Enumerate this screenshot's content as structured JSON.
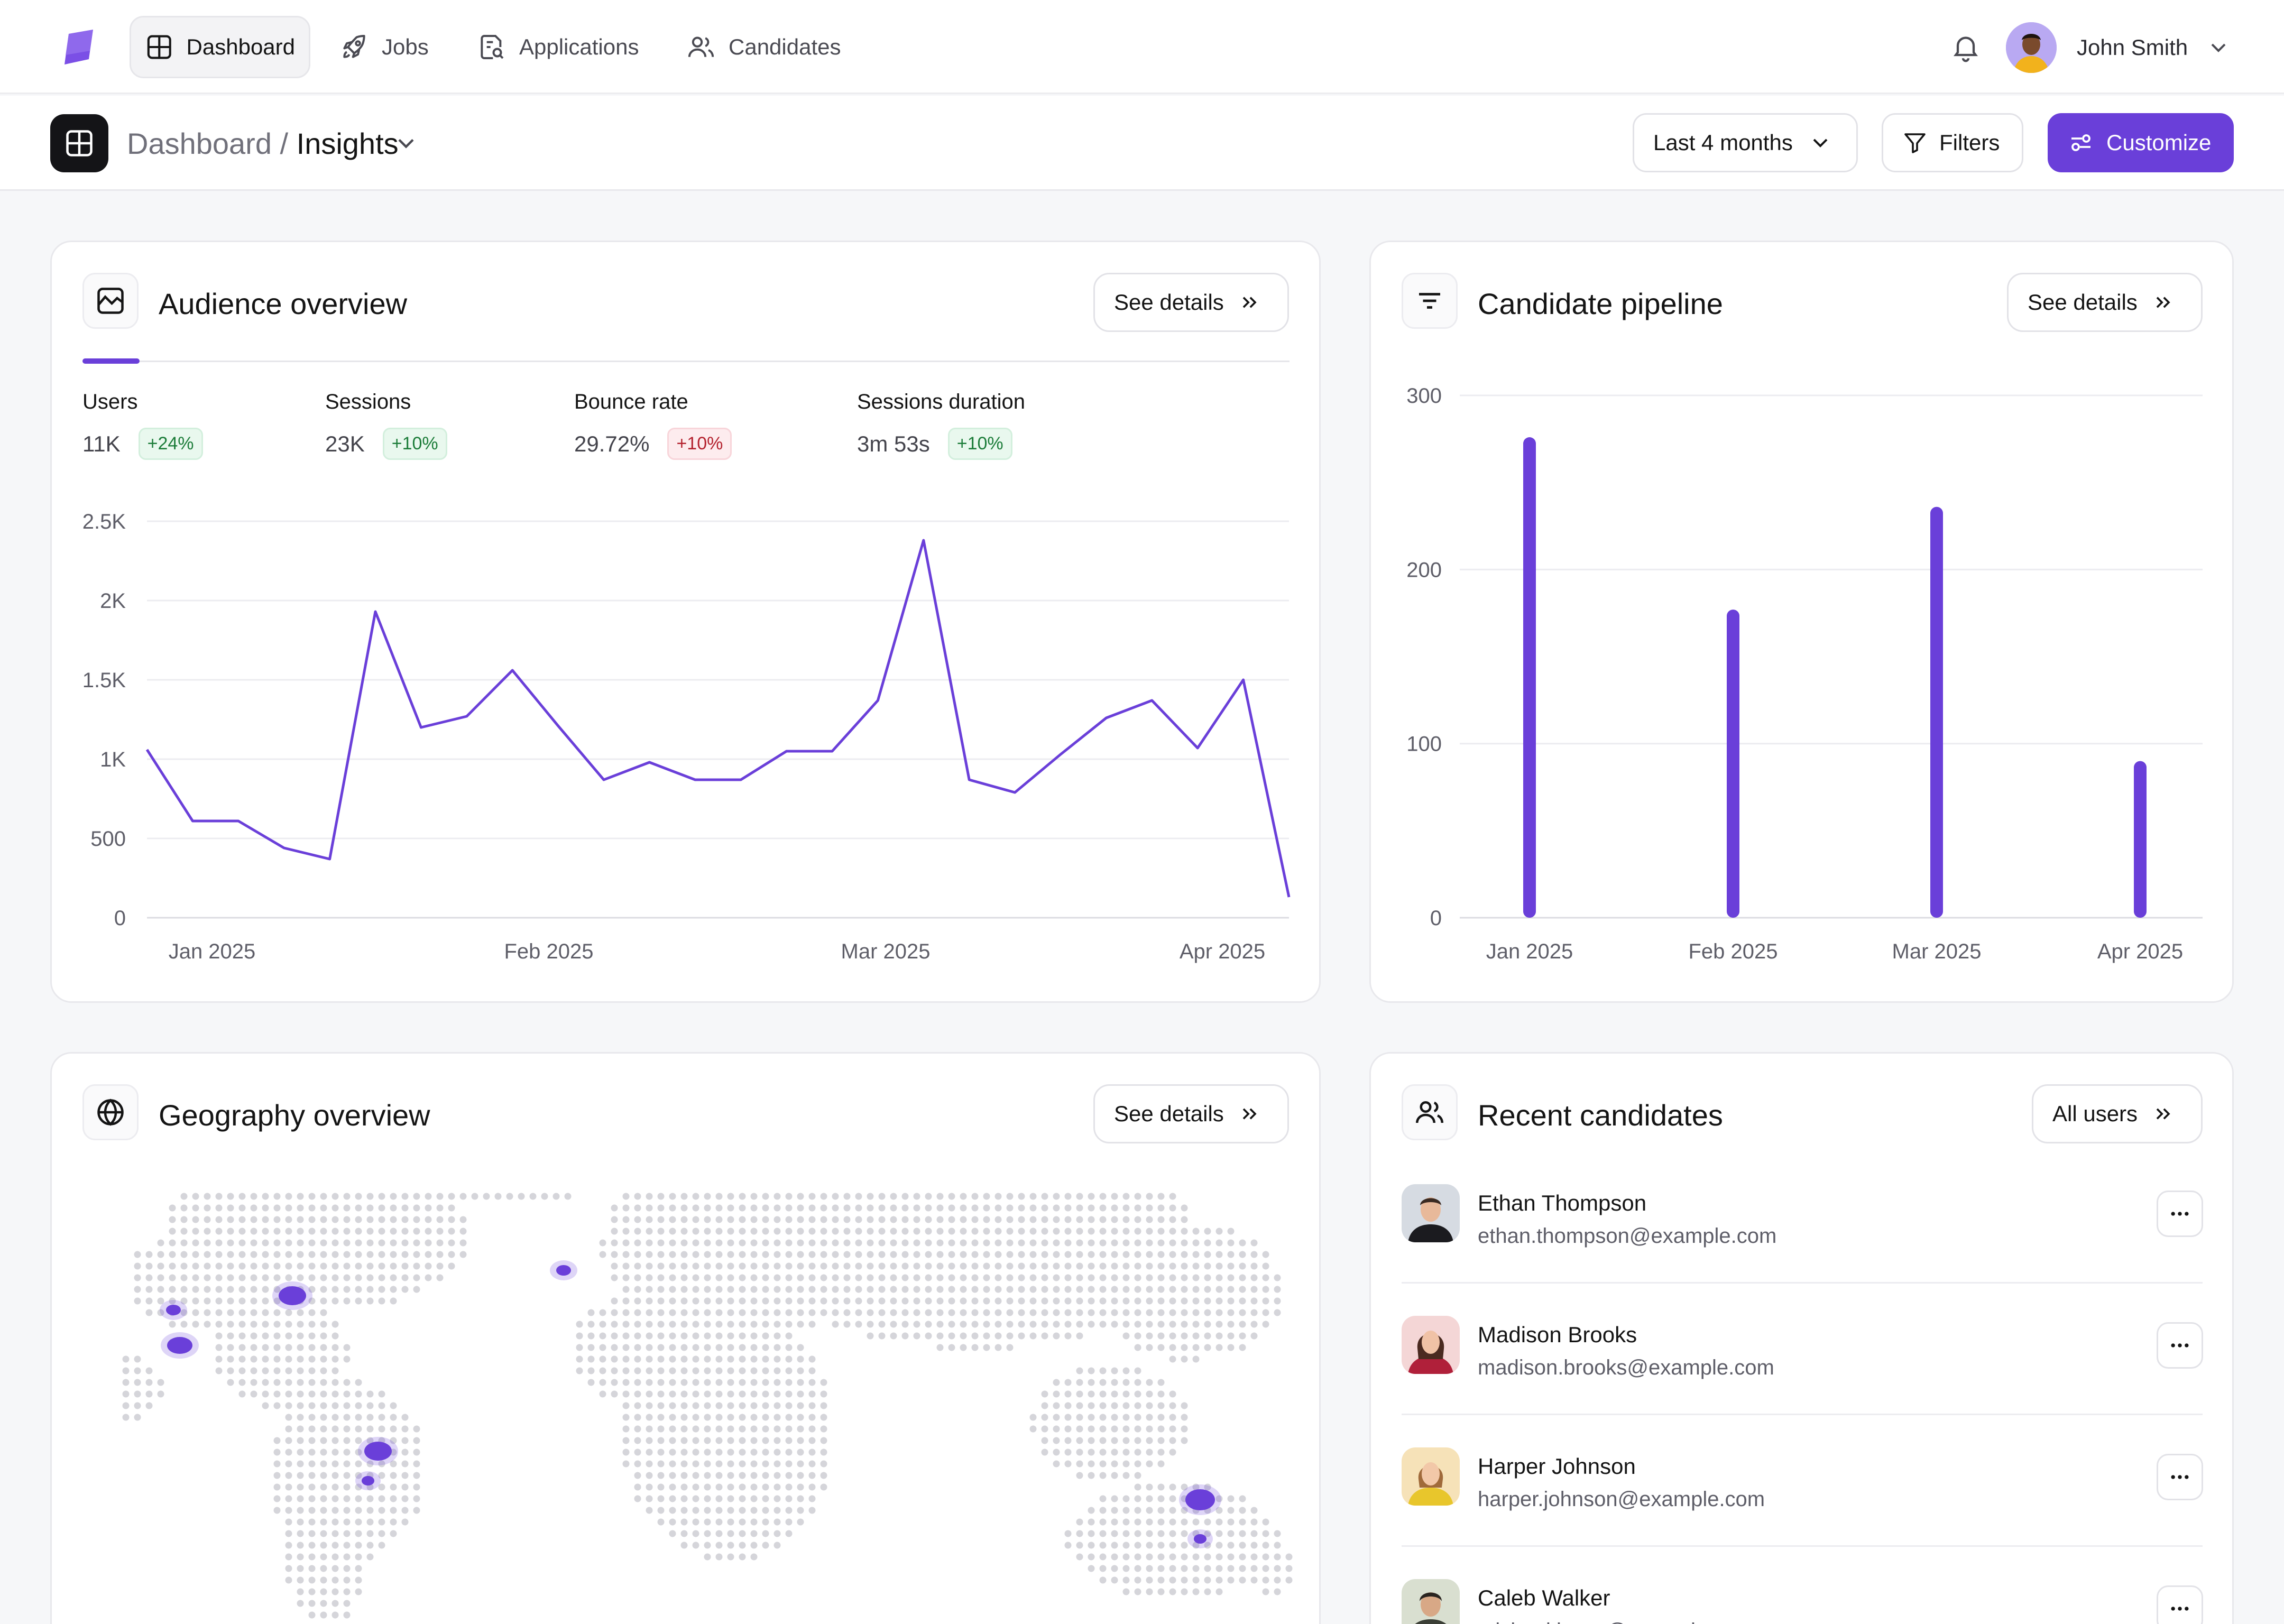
{
  "nav": {
    "items": [
      {
        "label": "Dashboard",
        "icon": "grid-icon",
        "active": true
      },
      {
        "label": "Jobs",
        "icon": "rocket-icon"
      },
      {
        "label": "Applications",
        "icon": "document-search-icon"
      },
      {
        "label": "Candidates",
        "icon": "users-icon"
      }
    ],
    "user_name": "John Smith"
  },
  "header": {
    "crumb_parent": "Dashboard / ",
    "crumb_current": "Insights",
    "range_label": "Last 4 months",
    "filters_label": "Filters",
    "customize_label": "Customize"
  },
  "colors": {
    "accent": "#6a3fd9",
    "positive": "#1d7d3a",
    "negative": "#b4232f"
  },
  "audience": {
    "title": "Audience overview",
    "details_label": "See details",
    "metrics": [
      {
        "label": "Users",
        "value": "11K",
        "delta": "+24%",
        "trend": "up"
      },
      {
        "label": "Sessions",
        "value": "23K",
        "delta": "+10%",
        "trend": "up"
      },
      {
        "label": "Bounce rate",
        "value": "29.72%",
        "delta": "+10%",
        "trend": "down"
      },
      {
        "label": "Sessions duration",
        "value": "3m 53s",
        "delta": "+10%",
        "trend": "up"
      }
    ]
  },
  "pipeline": {
    "title": "Candidate pipeline",
    "details_label": "See details"
  },
  "geography": {
    "title": "Geography overview",
    "details_label": "See details"
  },
  "recent": {
    "title": "Recent candidates",
    "all_label": "All users",
    "candidates": [
      {
        "name": "Ethan Thompson",
        "email": "ethan.thompson@example.com"
      },
      {
        "name": "Madison Brooks",
        "email": "madison.brooks@example.com"
      },
      {
        "name": "Harper Johnson",
        "email": "harper.johnson@example.com"
      },
      {
        "name": "Caleb Walker",
        "email": "michael.lucas@example.com"
      }
    ]
  },
  "chart_data": [
    {
      "type": "line",
      "title": "",
      "xlabel": "",
      "ylabel": "",
      "ylim": [
        0,
        2500
      ],
      "yticks": [
        "0",
        "500",
        "1K",
        "1.5K",
        "2K",
        "2.5K"
      ],
      "xtick_labels": [
        "Jan 2025",
        "Feb 2025",
        "Mar 2025",
        "Apr 2025"
      ],
      "grid": true,
      "series": [
        {
          "values": [
            1060,
            610,
            610,
            440,
            370,
            1930,
            1200,
            1270,
            1560,
            1210,
            870,
            980,
            870,
            870,
            1050,
            1050,
            1370,
            2380,
            870,
            790,
            1030,
            1260,
            1370,
            1070,
            1500,
            130
          ]
        }
      ]
    },
    {
      "type": "bar",
      "title": "",
      "categories": [
        "Jan 2025",
        "Feb 2025",
        "Mar 2025",
        "Apr 2025"
      ],
      "values": [
        276,
        177,
        236,
        90
      ],
      "ylim": [
        0,
        300
      ],
      "yticks": [
        "0",
        "100",
        "200",
        "300"
      ],
      "grid": true
    }
  ]
}
